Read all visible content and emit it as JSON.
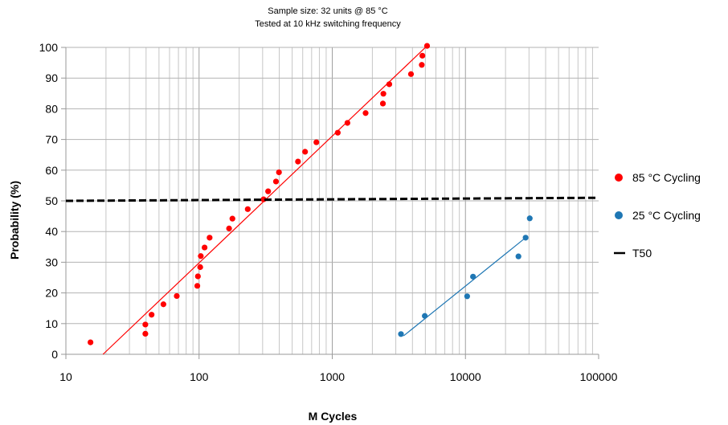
{
  "chart_data": {
    "type": "scatter",
    "title": "",
    "subtitle": [
      "Sample size: 32 units @ 85 °C",
      "Tested at 10 kHz switching frequency"
    ],
    "xlabel": "M Cycles",
    "ylabel": "Probability (%)",
    "x_scale": "log",
    "xlim": [
      10,
      100000
    ],
    "ylim": [
      0,
      100
    ],
    "x_ticks": [
      10,
      100,
      1000,
      10000,
      100000
    ],
    "x_tick_labels": [
      "10",
      "100",
      "1000",
      "10000",
      "100000"
    ],
    "y_ticks": [
      0,
      10,
      20,
      30,
      40,
      50,
      60,
      70,
      80,
      90,
      100
    ],
    "y_tick_labels": [
      "0",
      "10",
      "20",
      "30",
      "40",
      "50",
      "60",
      "70",
      "80",
      "90",
      "100"
    ],
    "grid": true,
    "legend": "right",
    "series": [
      {
        "name": "85 °C Cycling",
        "color": "#ff0000",
        "marker": "circle",
        "points": [
          [
            15.3,
            3.9
          ],
          [
            39.5,
            6.7
          ],
          [
            39.5,
            9.7
          ],
          [
            44,
            12.9
          ],
          [
            54,
            16.3
          ],
          [
            68,
            19.0
          ],
          [
            97,
            22.3
          ],
          [
            98,
            25.4
          ],
          [
            102,
            28.4
          ],
          [
            103,
            32.0
          ],
          [
            110,
            34.8
          ],
          [
            120,
            38.0
          ],
          [
            168,
            41.0
          ],
          [
            178,
            44.2
          ],
          [
            232,
            47.3
          ],
          [
            305,
            50.5
          ],
          [
            330,
            53.1
          ],
          [
            378,
            56.3
          ],
          [
            398,
            59.3
          ],
          [
            553,
            62.8
          ],
          [
            625,
            66.0
          ],
          [
            760,
            69.1
          ],
          [
            1100,
            72.2
          ],
          [
            1300,
            75.4
          ],
          [
            1780,
            78.6
          ],
          [
            2400,
            81.7
          ],
          [
            2420,
            84.9
          ],
          [
            2680,
            88.0
          ],
          [
            3900,
            91.3
          ],
          [
            4700,
            94.3
          ],
          [
            4750,
            97.3
          ],
          [
            5150,
            100.5
          ]
        ],
        "trend": [
          [
            19,
            0
          ],
          [
            5150,
            100.5
          ]
        ]
      },
      {
        "name": "25 °C Cycling",
        "color": "#1f77b4",
        "marker": "circle",
        "points": [
          [
            3280,
            6.6
          ],
          [
            4950,
            12.5
          ],
          [
            10300,
            18.9
          ],
          [
            11400,
            25.3
          ],
          [
            25000,
            31.9
          ],
          [
            28300,
            38.0
          ],
          [
            30400,
            44.3
          ]
        ],
        "trend": [
          [
            3430,
            6.0
          ],
          [
            28300,
            38.0
          ]
        ]
      },
      {
        "name": "T50",
        "color": "#000000",
        "marker": "dash-line",
        "line": [
          [
            10,
            50.0
          ],
          [
            100000,
            51.0
          ]
        ]
      }
    ]
  }
}
